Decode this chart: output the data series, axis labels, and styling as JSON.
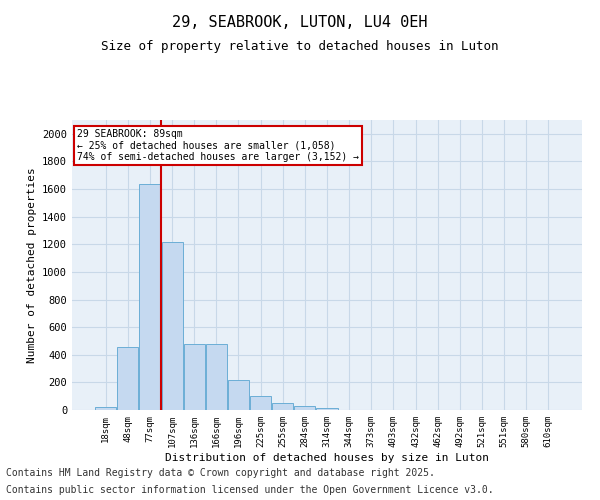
{
  "title1": "29, SEABROOK, LUTON, LU4 0EH",
  "title2": "Size of property relative to detached houses in Luton",
  "xlabel": "Distribution of detached houses by size in Luton",
  "ylabel": "Number of detached properties",
  "categories": [
    "18sqm",
    "48sqm",
    "77sqm",
    "107sqm",
    "136sqm",
    "166sqm",
    "196sqm",
    "225sqm",
    "255sqm",
    "284sqm",
    "314sqm",
    "344sqm",
    "373sqm",
    "403sqm",
    "432sqm",
    "462sqm",
    "492sqm",
    "521sqm",
    "551sqm",
    "580sqm",
    "610sqm"
  ],
  "bar_heights": [
    25,
    455,
    1640,
    1220,
    480,
    480,
    220,
    100,
    50,
    30,
    15,
    0,
    0,
    0,
    0,
    0,
    0,
    0,
    0,
    0,
    0
  ],
  "bar_color": "#c5d9f0",
  "bar_edge_color": "#6baed6",
  "vline_x": 2.5,
  "vline_color": "#cc0000",
  "annotation_text": "29 SEABROOK: 89sqm\n← 25% of detached houses are smaller (1,058)\n74% of semi-detached houses are larger (3,152) →",
  "annotation_box_color": "#ffffff",
  "annotation_box_edge": "#cc0000",
  "ylim": [
    0,
    2100
  ],
  "yticks": [
    0,
    200,
    400,
    600,
    800,
    1000,
    1200,
    1400,
    1600,
    1800,
    2000
  ],
  "grid_color": "#c8d8e8",
  "background_color": "#e8f0f8",
  "footer1": "Contains HM Land Registry data © Crown copyright and database right 2025.",
  "footer2": "Contains public sector information licensed under the Open Government Licence v3.0.",
  "title_fontsize": 11,
  "subtitle_fontsize": 9,
  "footer_fontsize": 7
}
